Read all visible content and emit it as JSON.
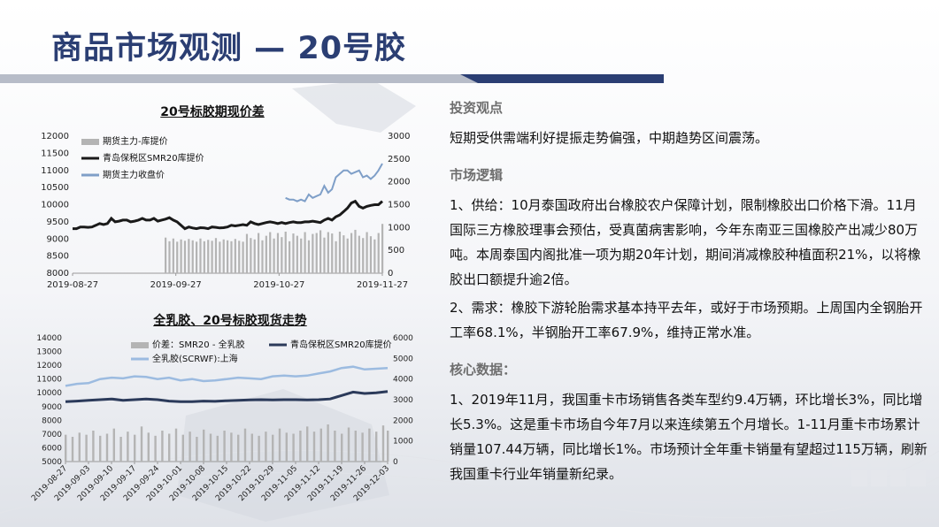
{
  "title": "商品市场观测 — 20号胶",
  "colors": {
    "title": "#2b3e73",
    "bar_dark": "#2b3e73",
    "bar_light": "#b7bcc8",
    "line_dark": "#1a1a1a",
    "line_blue": "#7f9fc8",
    "bar_gray": "#b4b4b4",
    "line_navy": "#2b3a5a",
    "line_lightblue": "#9cbbe0"
  },
  "chart_data": [
    {
      "type": "line",
      "title": "20号标胶期现价差",
      "x_ticks": [
        "2019-08-27",
        "2019-09-27",
        "2019-10-27",
        "2019-11-27"
      ],
      "y_left_ticks": [
        "12000",
        "11500",
        "11000",
        "10500",
        "10000",
        "9500",
        "9000",
        "8500",
        "8000"
      ],
      "y_right_ticks": [
        "3000",
        "2500",
        "2000",
        "1500",
        "1000",
        "500",
        "0"
      ],
      "ylim_left": [
        8000,
        12000
      ],
      "ylim_right": [
        0,
        3000
      ],
      "legend": [
        "期货主力-库提价",
        "青岛保税区SMR20库提价",
        "期货主力收盘价"
      ],
      "series": [
        {
          "name": "期货主力-库提价",
          "kind": "bar",
          "axis": "right",
          "x": [
            2.4,
            2.5,
            2.6,
            2.7,
            2.8,
            2.9,
            3.0,
            3.1,
            3.2,
            3.3,
            3.4,
            3.5,
            3.6,
            3.7,
            3.8,
            3.9,
            4.0,
            4.1,
            4.2,
            4.3,
            4.4,
            4.5,
            4.6,
            4.7,
            4.8,
            4.9,
            5.0,
            5.1,
            5.2,
            5.3,
            5.4,
            5.5,
            5.6,
            5.7,
            5.8,
            5.9,
            6.0,
            6.1,
            6.2,
            6.3,
            6.4,
            6.5,
            6.6,
            6.7,
            6.8,
            6.9,
            7.0,
            7.1,
            7.2,
            7.3,
            7.4,
            7.5,
            7.6,
            7.7,
            7.8,
            7.9,
            8.0
          ],
          "values": [
            780,
            700,
            760,
            690,
            740,
            710,
            750,
            720,
            690,
            760,
            700,
            730,
            710,
            770,
            690,
            740,
            720,
            700,
            750,
            710,
            690,
            860,
            770,
            740,
            880,
            720,
            820,
            900,
            760,
            880,
            790,
            910,
            700,
            870,
            820,
            760,
            900,
            720,
            860,
            880,
            940,
            780,
            900,
            870,
            700,
            910,
            830,
            760,
            880,
            950,
            820,
            770,
            900,
            810,
            740,
            880,
            1080
          ]
        },
        {
          "name": "青岛保税区SMR20库提价",
          "kind": "line",
          "axis": "left",
          "x": [
            0.0,
            0.1,
            0.2,
            0.3,
            0.4,
            0.5,
            0.6,
            0.7,
            0.8,
            0.9,
            1.0,
            1.1,
            1.2,
            1.3,
            1.4,
            1.5,
            1.6,
            1.7,
            1.8,
            1.9,
            2.0,
            2.1,
            2.2,
            2.3,
            2.4,
            2.5,
            2.6,
            2.7,
            2.8,
            2.9,
            3.0,
            3.1,
            3.2,
            3.3,
            3.4,
            3.5,
            3.6,
            3.7,
            3.8,
            3.9,
            4.0,
            4.1,
            4.2,
            4.3,
            4.4,
            4.5,
            4.6,
            4.7,
            4.8,
            4.9,
            5.0,
            5.1,
            5.2,
            5.3,
            5.4,
            5.5,
            5.6,
            5.7,
            5.8,
            5.9,
            6.0,
            6.1,
            6.2,
            6.3,
            6.4,
            6.5,
            6.6,
            6.7,
            6.8,
            6.9,
            7.0,
            7.1,
            7.2,
            7.3,
            7.4,
            7.5,
            7.6,
            7.7,
            7.8,
            7.9,
            8.0
          ],
          "values": [
            9300,
            9300,
            9350,
            9350,
            9340,
            9350,
            9400,
            9450,
            9420,
            9450,
            9600,
            9500,
            9520,
            9550,
            9550,
            9500,
            9520,
            9550,
            9600,
            9550,
            9550,
            9600,
            9520,
            9550,
            9580,
            9620,
            9550,
            9500,
            9400,
            9300,
            9350,
            9320,
            9300,
            9330,
            9320,
            9300,
            9350,
            9340,
            9320,
            9330,
            9350,
            9400,
            9380,
            9400,
            9420,
            9400,
            9500,
            9450,
            9420,
            9450,
            9480,
            9500,
            9480,
            9450,
            9480,
            9450,
            9480,
            9500,
            9480,
            9480,
            9500,
            9500,
            9520,
            9500,
            9480,
            9550,
            9600,
            9550,
            9650,
            9700,
            9800,
            9900,
            10050,
            10100,
            9950,
            9900,
            9950,
            9980,
            10000,
            10000,
            10100
          ]
        },
        {
          "name": "期货主力收盘价",
          "kind": "line",
          "axis": "left",
          "x": [
            5.5,
            5.6,
            5.7,
            5.8,
            5.9,
            6.0,
            6.1,
            6.2,
            6.3,
            6.4,
            6.5,
            6.6,
            6.7,
            6.8,
            6.9,
            7.0,
            7.1,
            7.2,
            7.3,
            7.4,
            7.5,
            7.6,
            7.7,
            7.8,
            7.9,
            8.0
          ],
          "values": [
            10200,
            10150,
            10150,
            10100,
            10150,
            10100,
            10300,
            10200,
            10250,
            10300,
            10550,
            10350,
            10450,
            10800,
            10900,
            11000,
            11000,
            10900,
            10950,
            11000,
            10800,
            10850,
            10750,
            10850,
            11000,
            11200
          ]
        }
      ]
    },
    {
      "type": "line",
      "title": "全乳胶、20号标胶现货走势",
      "x_ticks": [
        "2019-08-27",
        "2019-09-03",
        "2019-09-10",
        "2019-09-17",
        "2019-09-24",
        "2019-10-01",
        "2019-10-08",
        "2019-10-15",
        "2019-10-22",
        "2019-10-29",
        "2019-11-05",
        "2019-11-12",
        "2019-11-19",
        "2019-11-26",
        "2019-12-03"
      ],
      "y_left_ticks": [
        "14000",
        "13000",
        "12000",
        "11000",
        "10000",
        "9000",
        "8000",
        "7000",
        "6000",
        "5000"
      ],
      "y_right_ticks": [
        "6000",
        "5000",
        "4000",
        "3000",
        "2000",
        "1000",
        "0"
      ],
      "ylim_left": [
        5000,
        14000
      ],
      "ylim_right": [
        0,
        6000
      ],
      "legend": [
        "价差：SMR20 - 全乳胶",
        "青岛保税区SMR20库提价",
        "全乳胶(SCRWF):上海"
      ],
      "series": [
        {
          "name": "价差：SMR20 - 全乳胶",
          "kind": "bar",
          "axis": "right",
          "x": [
            0.0,
            0.3,
            0.6,
            0.9,
            1.2,
            1.5,
            1.8,
            2.1,
            2.4,
            2.7,
            3.0,
            3.3,
            3.6,
            3.9,
            4.2,
            4.5,
            4.8,
            5.1,
            5.4,
            5.7,
            6.0,
            6.3,
            6.6,
            6.9,
            7.2,
            7.5,
            7.8,
            8.1,
            8.4,
            8.7,
            9.0,
            9.3,
            9.6,
            9.9,
            10.2,
            10.5,
            10.8,
            11.1,
            11.4,
            11.7,
            12.0,
            12.3,
            12.6,
            12.9,
            13.2,
            13.5,
            13.8,
            14.0
          ],
          "values": [
            1300,
            1200,
            1400,
            1300,
            1500,
            1250,
            1350,
            1600,
            1200,
            1450,
            1300,
            1700,
            1400,
            1250,
            1500,
            1350,
            1600,
            1300,
            1450,
            1200,
            1550,
            1350,
            1250,
            1500,
            1400,
            1300,
            1600,
            1350,
            1250,
            1450,
            1300,
            1600,
            1400,
            1350,
            1500,
            1700,
            1450,
            1600,
            1800,
            1500,
            1350,
            1650,
            1500,
            1400,
            1600,
            1450,
            1750,
            1500
          ]
        },
        {
          "name": "青岛保税区SMR20库提价",
          "kind": "line",
          "axis": "left",
          "x": [
            0.0,
            0.5,
            1.0,
            1.5,
            2.0,
            2.5,
            3.0,
            3.5,
            4.0,
            4.5,
            5.0,
            5.5,
            6.0,
            6.5,
            7.0,
            7.5,
            8.0,
            8.5,
            9.0,
            9.5,
            10.0,
            10.5,
            11.0,
            11.5,
            12.0,
            12.5,
            13.0,
            13.5,
            14.0
          ],
          "values": [
            9350,
            9400,
            9450,
            9500,
            9550,
            9450,
            9500,
            9550,
            9500,
            9400,
            9350,
            9350,
            9400,
            9380,
            9420,
            9450,
            9480,
            9500,
            9480,
            9500,
            9500,
            9480,
            9500,
            9550,
            9800,
            10050,
            9950,
            10000,
            10100
          ]
        },
        {
          "name": "全乳胶(SCRWF):上海",
          "kind": "line",
          "axis": "left",
          "x": [
            0.0,
            0.5,
            1.0,
            1.5,
            2.0,
            2.5,
            3.0,
            3.5,
            4.0,
            4.5,
            5.0,
            5.5,
            6.0,
            6.5,
            7.0,
            7.5,
            8.0,
            8.5,
            9.0,
            9.5,
            10.0,
            10.5,
            11.0,
            11.5,
            12.0,
            12.5,
            13.0,
            13.5,
            14.0
          ],
          "values": [
            10500,
            10650,
            10700,
            11000,
            11100,
            11050,
            11200,
            11150,
            11000,
            11100,
            10900,
            11000,
            10850,
            10900,
            11000,
            11100,
            11050,
            11000,
            11200,
            11250,
            11200,
            11250,
            11400,
            11550,
            11800,
            11900,
            11700,
            11750,
            11800
          ]
        }
      ]
    }
  ],
  "right": {
    "sections": [
      {
        "head": "投资观点",
        "paras": [
          "短期受供需端利好提振走势偏强，中期趋势区间震荡。"
        ]
      },
      {
        "head": "市场逻辑",
        "paras": [
          "1、供给：10月泰国政府出台橡胶农户保障计划，限制橡胶出口价格下滑。11月国际三方橡胶理事会预估，受真菌病害影响，今年东南亚三国橡胶产出减少80万吨。本周泰国内阁批准一项为期20年计划，期间消减橡胶种植面积21%，以将橡胶出口额提升逾2倍。",
          "2、需求：橡胶下游轮胎需求基本持平去年，或好于市场预期。上周国内全钢胎开工率68.1%，半钢胎开工率67.9%，维持正常水准。"
        ]
      },
      {
        "head": "核心数据：",
        "paras": [
          "1、2019年11月，我国重卡市场销售各类车型约9.4万辆，环比增长3%，同比增长5.3%。这是重卡市场自今年7月以来连续第五个月增长。1-11月重卡市场累计销量107.44万辆，同比增长1%。市场预计全年重卡销量有望超过115万辆，刷新我国重卡行业年销量新纪录。"
        ]
      }
    ]
  }
}
